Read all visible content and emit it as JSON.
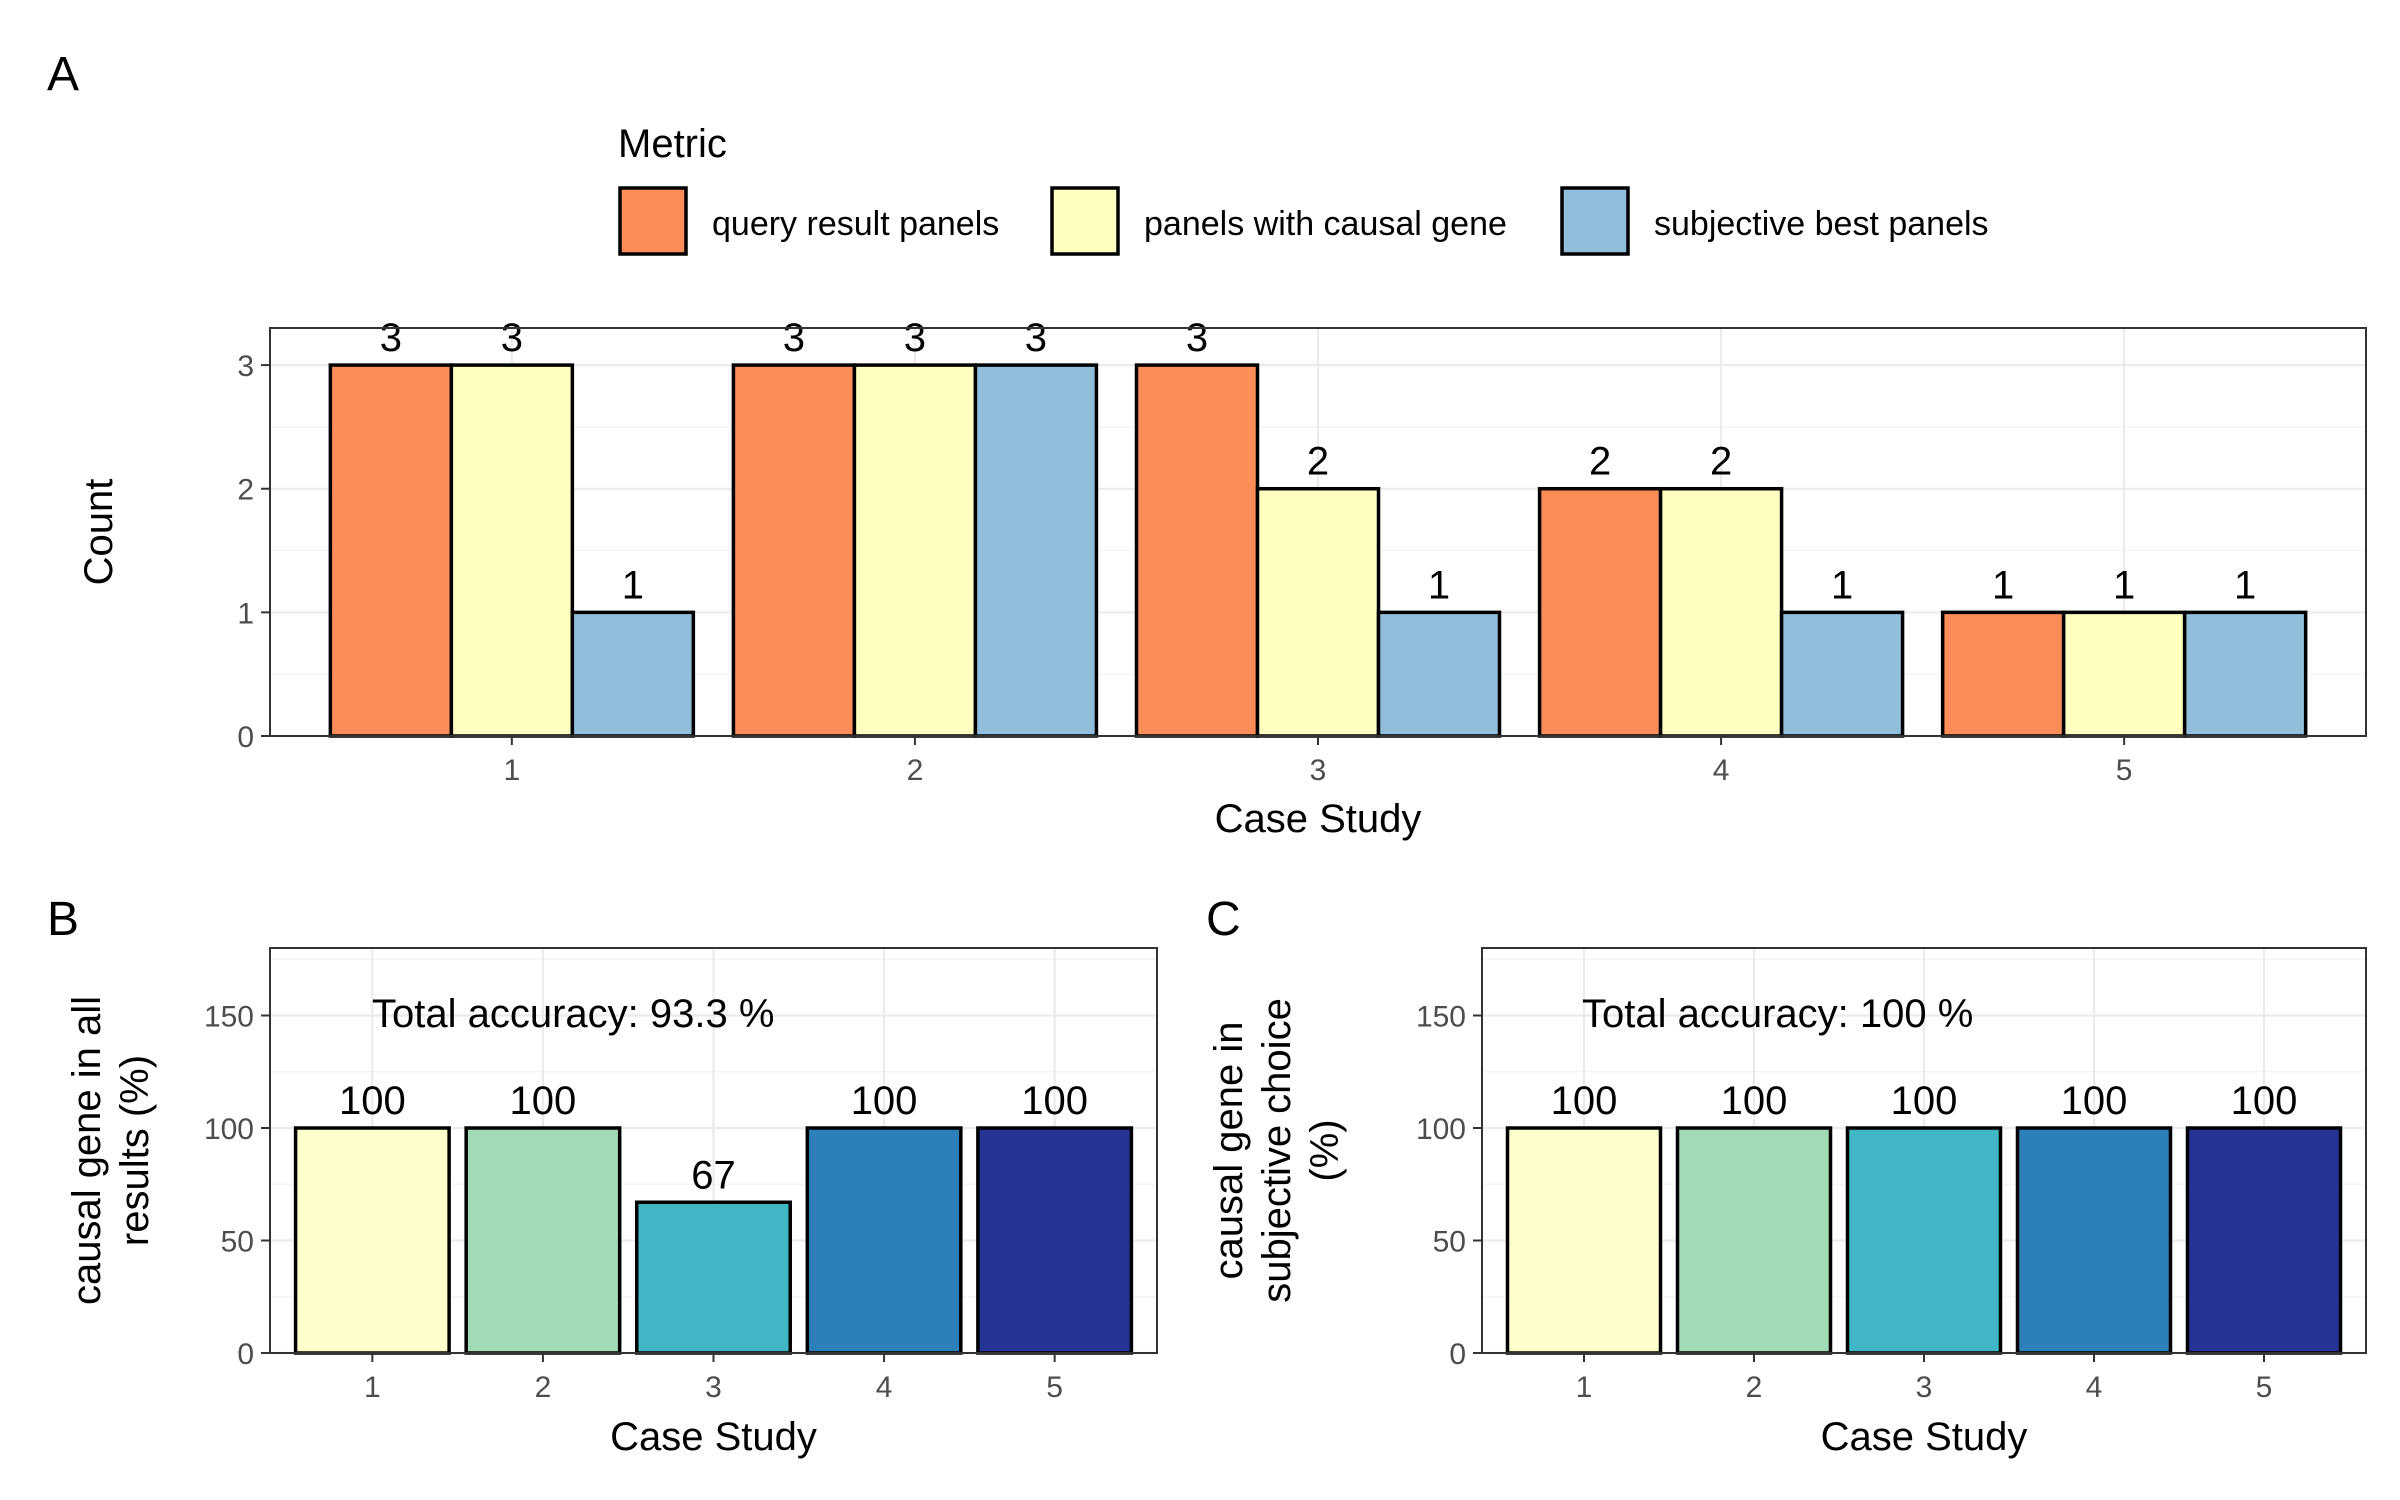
{
  "chart_data": [
    {
      "panel_tag": "A",
      "type": "bar",
      "categories": [
        "1",
        "2",
        "3",
        "4",
        "5"
      ],
      "series": [
        {
          "name": "query result panels",
          "color": "#fc8d59",
          "values": [
            3,
            3,
            3,
            2,
            1
          ]
        },
        {
          "name": "panels with causal gene",
          "color": "#ffffbf",
          "values": [
            3,
            3,
            2,
            2,
            1
          ]
        },
        {
          "name": "subjective best panels",
          "color": "#91bfdb",
          "values": [
            1,
            3,
            1,
            1,
            1
          ]
        }
      ],
      "legend": {
        "title": "Metric",
        "placement": "top"
      },
      "xlabel": "Case Study",
      "ylabel": "Count",
      "yticks": [
        "0",
        "1",
        "2",
        "3"
      ],
      "ylim": [
        0,
        3.3
      ],
      "grid": true
    },
    {
      "panel_tag": "B",
      "type": "bar",
      "categories": [
        "1",
        "2",
        "3",
        "4",
        "5"
      ],
      "values": [
        100,
        100,
        67,
        100,
        100
      ],
      "colors": [
        "#ffffcc",
        "#a1dab4",
        "#41b6c4",
        "#2c7fb8",
        "#253494"
      ],
      "annotation": "Total accuracy: 93.3 %",
      "xlabel": "Case Study",
      "ylabel": "causal gene in all results (%)",
      "ylabel_lines": [
        "causal gene in all",
        "results (%)"
      ],
      "yticks": [
        "0",
        "50",
        "100",
        "150"
      ],
      "ylim": [
        0,
        180
      ],
      "grid": true
    },
    {
      "panel_tag": "C",
      "type": "bar",
      "categories": [
        "1",
        "2",
        "3",
        "4",
        "5"
      ],
      "values": [
        100,
        100,
        100,
        100,
        100
      ],
      "colors": [
        "#ffffcc",
        "#a1dab4",
        "#41b6c4",
        "#2c7fb8",
        "#253494"
      ],
      "annotation": "Total accuracy: 100 %",
      "xlabel": "Case Study",
      "ylabel": "causal gene in subjective choice (%)",
      "ylabel_lines": [
        "causal gene in",
        "subjective choice",
        "(%)"
      ],
      "yticks": [
        "0",
        "50",
        "100",
        "150"
      ],
      "ylim": [
        0,
        180
      ],
      "grid": true
    }
  ]
}
